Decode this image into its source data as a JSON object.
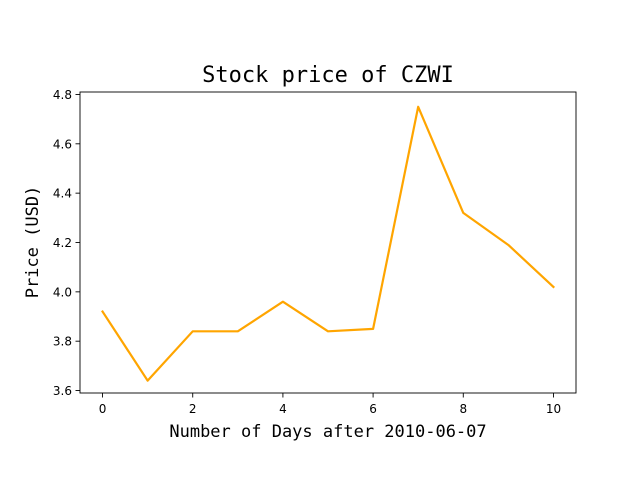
{
  "chart_data": {
    "type": "line",
    "title": "Stock price of CZWI",
    "xlabel": "Number of Days after 2010-06-07",
    "ylabel": "Price (USD)",
    "xlim": [
      -0.5,
      10.5
    ],
    "ylim": [
      3.59,
      4.81
    ],
    "x_ticks": [
      0,
      2,
      4,
      6,
      8,
      10
    ],
    "y_ticks": [
      3.6,
      3.8,
      4.0,
      4.2,
      4.4,
      4.6,
      4.8
    ],
    "grid": false,
    "series": [
      {
        "color": "#ffa500",
        "x": [
          0,
          1,
          2,
          3,
          4,
          5,
          6,
          7,
          8,
          9,
          10
        ],
        "y": [
          3.92,
          3.64,
          3.84,
          3.84,
          3.96,
          3.84,
          3.85,
          4.75,
          4.32,
          4.19,
          4.02
        ]
      }
    ]
  }
}
